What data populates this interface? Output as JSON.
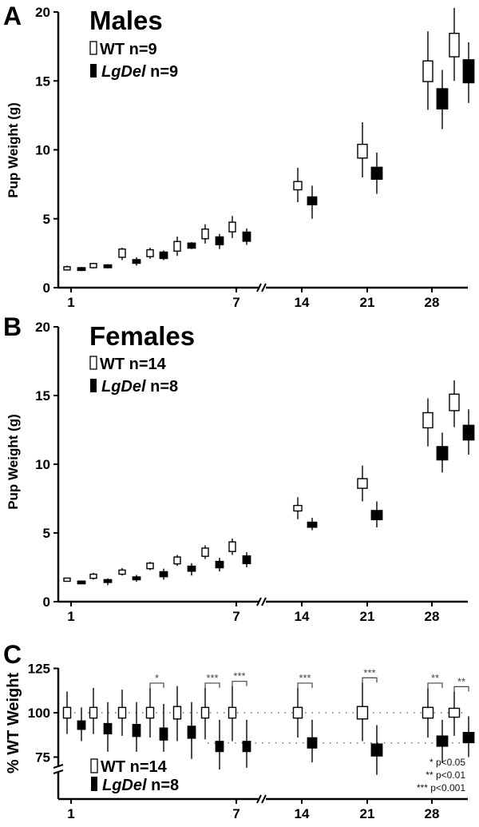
{
  "chart_data": [
    {
      "type": "box",
      "panel": "A",
      "title": "Males",
      "xlabel": "",
      "ylabel": "Pup Weight (g)",
      "ylim": [
        0,
        20
      ],
      "yticks": [
        "0",
        "5",
        "10",
        "15",
        "20"
      ],
      "xticks": [
        "1",
        "7",
        "14",
        "21",
        "28"
      ],
      "axis_break": "between day 7 and 14",
      "legend": [
        {
          "name": "WT",
          "n": "n=9",
          "style": "open"
        },
        {
          "name": "LgDel",
          "n": "n=9",
          "style": "filled"
        }
      ],
      "days": [
        1,
        2,
        3,
        4,
        5,
        6,
        7,
        14,
        21,
        28,
        30
      ],
      "series": [
        {
          "name": "WT",
          "mean": [
            1.4,
            1.6,
            2.5,
            2.5,
            3.0,
            3.9,
            4.4,
            7.4,
            9.9,
            15.7,
            17.6
          ],
          "box": [
            0.1,
            0.15,
            0.3,
            0.25,
            0.35,
            0.35,
            0.35,
            0.3,
            0.5,
            0.75,
            0.85
          ],
          "whisker_low": [
            1.3,
            1.4,
            2.0,
            2.1,
            2.3,
            3.2,
            3.6,
            6.2,
            8.0,
            12.9,
            15.0
          ],
          "whisker_high": [
            1.6,
            1.8,
            2.9,
            2.9,
            3.7,
            4.6,
            5.2,
            8.7,
            12.0,
            18.6,
            20.3
          ]
        },
        {
          "name": "LgDel",
          "mean": [
            1.35,
            1.55,
            1.9,
            2.35,
            3.05,
            3.4,
            3.7,
            6.3,
            8.3,
            13.7,
            15.7
          ],
          "box": [
            0.08,
            0.12,
            0.15,
            0.25,
            0.2,
            0.3,
            0.35,
            0.3,
            0.45,
            0.75,
            0.85
          ],
          "whisker_low": [
            1.2,
            1.4,
            1.6,
            2.0,
            2.8,
            2.8,
            3.1,
            5.0,
            6.8,
            11.5,
            13.4
          ],
          "whisker_high": [
            1.5,
            1.7,
            2.2,
            2.7,
            3.3,
            3.9,
            4.3,
            7.4,
            9.8,
            15.8,
            17.8
          ]
        }
      ]
    },
    {
      "type": "box",
      "panel": "B",
      "title": "Females",
      "xlabel": "",
      "ylabel": "Pup Weight (g)",
      "ylim": [
        0,
        20
      ],
      "yticks": [
        "0",
        "5",
        "10",
        "15",
        "20"
      ],
      "xticks": [
        "1",
        "7",
        "14",
        "21",
        "28"
      ],
      "axis_break": "between day 7 and 14",
      "legend": [
        {
          "name": "WT",
          "n": "n=14",
          "style": "open"
        },
        {
          "name": "LgDel",
          "n": "n=8",
          "style": "filled"
        }
      ],
      "days": [
        1,
        2,
        3,
        4,
        5,
        6,
        7,
        14,
        21,
        28,
        30
      ],
      "series": [
        {
          "name": "WT",
          "mean": [
            1.6,
            1.85,
            2.15,
            2.6,
            3.0,
            3.6,
            4.0,
            6.8,
            8.6,
            13.2,
            14.5
          ],
          "box": [
            0.08,
            0.15,
            0.15,
            0.2,
            0.25,
            0.3,
            0.35,
            0.2,
            0.35,
            0.55,
            0.6
          ],
          "whisker_low": [
            1.5,
            1.6,
            1.9,
            2.3,
            2.6,
            3.1,
            3.4,
            6.0,
            7.3,
            11.3,
            12.7
          ],
          "whisker_high": [
            1.75,
            2.1,
            2.45,
            2.9,
            3.4,
            4.1,
            4.6,
            7.6,
            9.9,
            14.8,
            16.1
          ]
        },
        {
          "name": "LgDel",
          "mean": [
            1.4,
            1.5,
            1.7,
            2.0,
            2.4,
            2.7,
            3.05,
            5.6,
            6.3,
            10.8,
            12.3
          ],
          "box": [
            0.06,
            0.12,
            0.12,
            0.2,
            0.2,
            0.25,
            0.3,
            0.2,
            0.35,
            0.5,
            0.55
          ],
          "whisker_low": [
            1.3,
            1.2,
            1.45,
            1.6,
            1.9,
            2.2,
            2.5,
            5.2,
            5.4,
            9.4,
            10.7
          ],
          "whisker_high": [
            1.5,
            1.7,
            1.95,
            2.4,
            2.8,
            3.2,
            3.6,
            6.1,
            7.3,
            12.3,
            14.0
          ]
        }
      ]
    },
    {
      "type": "box",
      "panel": "C",
      "title": "",
      "xlabel": "",
      "ylabel": "% WT Weight",
      "ylim": [
        50,
        125
      ],
      "yticks": [
        "75",
        "100",
        "125"
      ],
      "xticks": [
        "1",
        "7",
        "14",
        "21",
        "28"
      ],
      "axis_break": "y-axis below 75; x-axis between day 7 and 14",
      "reference_lines": [
        100,
        83
      ],
      "legend": [
        {
          "name": "WT",
          "n": "n=14",
          "style": "open"
        },
        {
          "name": "LgDel",
          "n": "n=8",
          "style": "filled"
        }
      ],
      "days": [
        1,
        2,
        3,
        4,
        5,
        6,
        7,
        14,
        21,
        28,
        30
      ],
      "series": [
        {
          "name": "WT",
          "mean": [
            100,
            100,
            100,
            100,
            100,
            100,
            100,
            100,
            100,
            100,
            100
          ],
          "box": [
            3,
            3,
            3,
            3,
            3.5,
            3,
            3,
            3,
            3.5,
            3,
            2.5
          ],
          "whisker_low": [
            88,
            88,
            87,
            86,
            84,
            85,
            84,
            86,
            84,
            86,
            87
          ],
          "whisker_high": [
            112,
            114,
            113,
            114,
            115,
            114,
            115,
            114,
            117,
            114,
            112
          ]
        },
        {
          "name": "LgDel",
          "mean": [
            93,
            91,
            90,
            88,
            89,
            81,
            81,
            83,
            79,
            84,
            86
          ],
          "box": [
            2.5,
            3,
            3.5,
            3.5,
            3.5,
            3,
            3,
            3,
            3.5,
            3,
            3
          ],
          "whisker_low": [
            84,
            78,
            78,
            78,
            74,
            68,
            69,
            72,
            65,
            72,
            75
          ],
          "whisker_high": [
            103,
            106,
            106,
            105,
            106,
            96,
            96,
            96,
            93,
            96,
            98
          ]
        }
      ],
      "significance": [
        {
          "day": 4,
          "label": "*"
        },
        {
          "day": 6,
          "label": "***"
        },
        {
          "day": 7,
          "label": "***"
        },
        {
          "day": 14,
          "label": "***"
        },
        {
          "day": 21,
          "label": "***"
        },
        {
          "day": 28,
          "label": "**"
        },
        {
          "day": 30,
          "label": "**"
        }
      ],
      "pvalue_key": [
        "* p<0.05",
        "** p<0.01",
        "*** p<0.001"
      ]
    }
  ],
  "labels": {
    "panel_a": "A",
    "panel_b": "B",
    "panel_c": "C",
    "title_a": "Males",
    "title_b": "Females",
    "ylabel_ab": "Pup Weight (g)",
    "ylabel_c": "% WT Weight",
    "legend_a_wt": "WT  n=9",
    "legend_a_lg_name": "LgDel",
    "legend_a_lg_n": " n=9",
    "legend_b_wt": "WT  n=14",
    "legend_b_lg_name": "LgDel",
    "legend_b_lg_n": " n=8",
    "legend_c_wt": "WT  n=14",
    "legend_c_lg_name": "LgDel",
    "legend_c_lg_n": " n=8",
    "pkey": [
      "* p<0.05",
      "** p<0.01",
      "*** p<0.001"
    ]
  },
  "colors": {
    "wt_fill": "#ffffff",
    "lgdel_fill": "#000000",
    "axis": "#000000",
    "whisker": "#222222",
    "sig": "#444444"
  }
}
